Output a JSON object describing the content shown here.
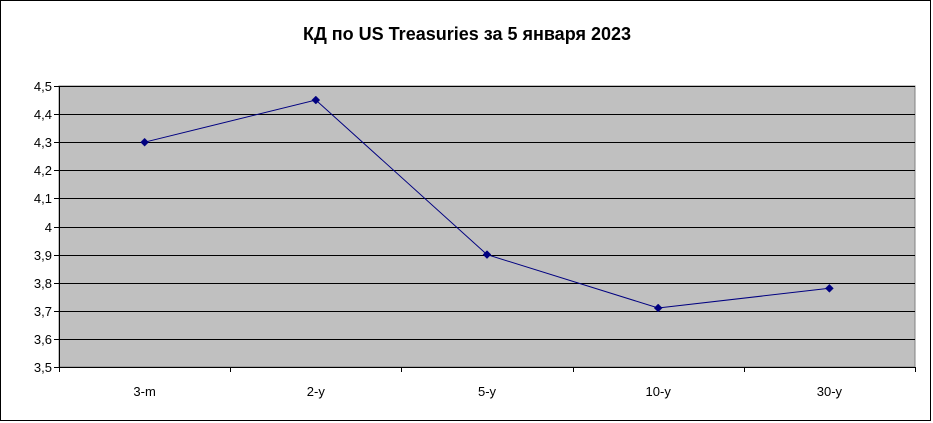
{
  "chart_data": {
    "type": "line",
    "title": "КД по US Treasuries за 5 января 2023",
    "xlabel": "",
    "ylabel": "",
    "categories": [
      "3-m",
      "2-y",
      "5-y",
      "10-y",
      "30-y"
    ],
    "series": [
      {
        "values": [
          4.3,
          4.45,
          3.9,
          3.71,
          3.78
        ]
      }
    ],
    "ylim": [
      3.5,
      4.5
    ],
    "y_ticks": [
      3.5,
      3.6,
      3.7,
      3.8,
      3.9,
      4.0,
      4.1,
      4.2,
      4.3,
      4.4,
      4.5
    ],
    "y_tick_labels": [
      "3,5",
      "3,6",
      "3,7",
      "3,8",
      "3,9",
      "4",
      "4,1",
      "4,2",
      "4,3",
      "4,4",
      "4,5"
    ],
    "grid": true,
    "legend": "none",
    "colors": {
      "plot_background": "#c0c0c0",
      "gridline": "#000000",
      "series_line": "#000080",
      "marker": "#000080",
      "frame": "#000000"
    },
    "marker_shape": "diamond-icon"
  }
}
